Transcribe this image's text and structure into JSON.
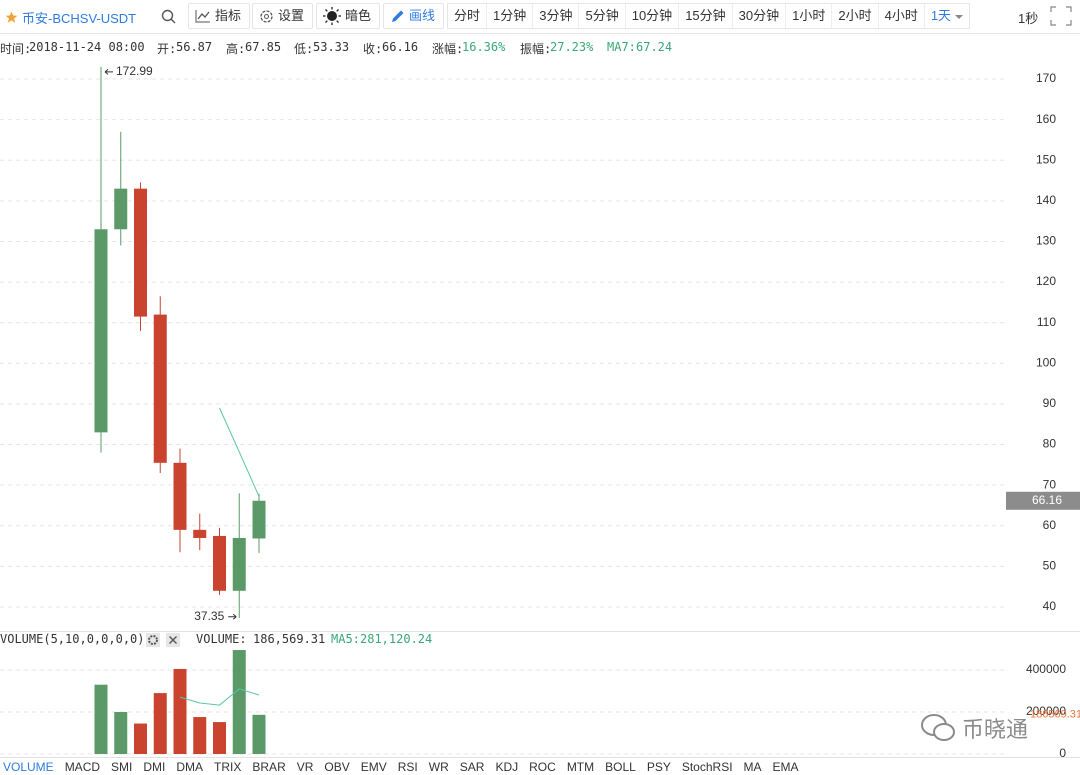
{
  "toolbar": {
    "symbol": "币安-BCHSV-USDT",
    "tools": [
      "指标",
      "设置",
      "暗色",
      "画线"
    ],
    "intervals": [
      "分时",
      "1分钟",
      "3分钟",
      "5分钟",
      "10分钟",
      "15分钟",
      "30分钟",
      "1小时",
      "2小时",
      "4小时",
      "1天"
    ],
    "speed": "1秒"
  },
  "info": {
    "time_label": "时间:",
    "time": "2018-11-24 08:00",
    "open_label": "开:",
    "high_label": "高:",
    "low_label": "低:",
    "close_label": "收:",
    "change_label": "涨幅:",
    "change": "16.36%",
    "amplitude_label": "振幅:",
    "amplitude": "27.23%",
    "ma_label": "MA7:"
  },
  "chart_data": [
    {
      "type": "candlestick",
      "categories": [
        null,
        null,
        null,
        null,
        null,
        null,
        null,
        null,
        null
      ],
      "open": [
        83,
        133,
        143,
        112,
        75.5,
        59,
        57.5,
        44,
        56.87
      ],
      "high": [
        172.99,
        157,
        144.5,
        116.5,
        79,
        63,
        59.5,
        68,
        67.85
      ],
      "low": [
        78,
        129,
        108,
        73,
        53.5,
        54,
        43,
        37.35,
        53.33
      ],
      "close": [
        133,
        143,
        111.5,
        75.5,
        59,
        57,
        44,
        57,
        66.16
      ],
      "up_color": "#5b9a68",
      "down_color": "#c9432f",
      "ma": {
        "color": "#5cc6a5",
        "values": [
          null,
          null,
          null,
          null,
          null,
          null,
          89,
          78.2,
          67.24
        ]
      },
      "ylim": [
        34,
        176
      ],
      "yticks": [
        40,
        50,
        60,
        70,
        80,
        90,
        100,
        110,
        120,
        130,
        140,
        150,
        160,
        170
      ],
      "grid": true
    },
    {
      "type": "bar",
      "categories": [
        null,
        null,
        null,
        null,
        null,
        null,
        null,
        null,
        null
      ],
      "values": [
        330000,
        200000,
        145000,
        290000,
        405000,
        176000,
        152000,
        495000,
        186569.31
      ],
      "colors": [
        "#5b9a68",
        "#5b9a68",
        "#c9432f",
        "#c9432f",
        "#c9432f",
        "#c9432f",
        "#c9432f",
        "#5b9a68",
        "#5b9a68"
      ],
      "last_value_color": "#e8743b",
      "ma": {
        "color": "#5cc6a5",
        "values": [
          null,
          null,
          null,
          null,
          271000,
          243000,
          233000,
          310000,
          281120.24
        ]
      },
      "ylim": [
        0,
        510000
      ],
      "yticks": [
        0,
        200000,
        400000
      ],
      "grid": true
    }
  ],
  "volume_info": {
    "indicator": "VOLUME(5,10,0,0,0,0)",
    "volume_label": "VOLUME:",
    "volume": "186,569.31",
    "ma_label": "MA5:",
    "ma": "281,120.24"
  },
  "tabs": [
    "VOLUME",
    "MACD",
    "SMI",
    "DMI",
    "DMA",
    "TRIX",
    "BRAR",
    "VR",
    "OBV",
    "EMV",
    "RSI",
    "WR",
    "SAR",
    "KDJ",
    "ROC",
    "MTM",
    "BOLL",
    "PSY",
    "StochRSI",
    "MA",
    "EMA"
  ],
  "watermark": "币晓通"
}
